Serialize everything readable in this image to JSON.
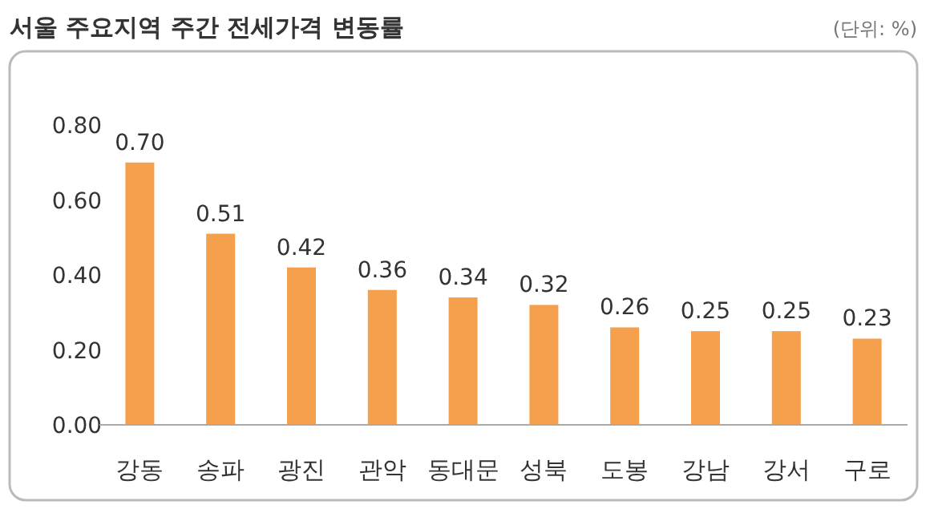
{
  "chart_data": {
    "type": "bar",
    "title": "서울 주요지역 주간 전세가격 변동률",
    "annotations": [
      "(단위: %)"
    ],
    "categories": [
      "강동",
      "송파",
      "광진",
      "관악",
      "동대문",
      "성북",
      "도봉",
      "강남",
      "강서",
      "구로"
    ],
    "values": [
      0.7,
      0.51,
      0.42,
      0.36,
      0.34,
      0.32,
      0.26,
      0.25,
      0.25,
      0.23
    ],
    "value_labels": [
      "0.70",
      "0.51",
      "0.42",
      "0.36",
      "0.34",
      "0.32",
      "0.26",
      "0.25",
      "0.25",
      "0.23"
    ],
    "color": "#f5a04c",
    "ylim": [
      0,
      0.8
    ],
    "yticks": [
      {
        "value": 0,
        "label": "0.00"
      },
      {
        "value": 0.2,
        "label": "0.20"
      },
      {
        "value": 0.4,
        "label": "0.40"
      },
      {
        "value": 0.6,
        "label": "0.60"
      },
      {
        "value": 0.8,
        "label": "0.80"
      }
    ],
    "grid": false
  }
}
